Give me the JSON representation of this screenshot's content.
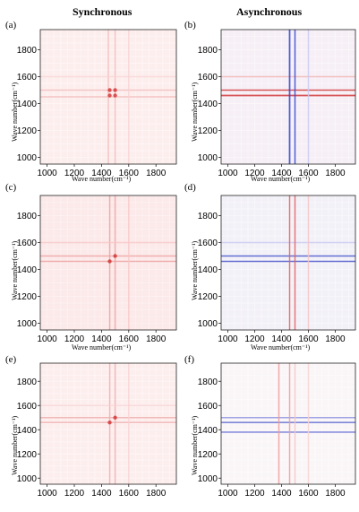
{
  "columns": {
    "left": "Synchronous",
    "right": "Asynchronous"
  },
  "chart_data": [
    {
      "id": "a",
      "type": "heatmap",
      "label": "(a)",
      "xlabel": "Wave number(cm⁻¹)",
      "ylabel": "Wave number(cm⁻¹)",
      "xlim": [
        950,
        1950
      ],
      "ylim": [
        950,
        1950
      ],
      "xticks": [
        1000,
        1200,
        1400,
        1600,
        1800
      ],
      "yticks": [
        1000,
        1200,
        1400,
        1600,
        1800
      ],
      "bands": [
        {
          "pos": 1450,
          "w": 10,
          "color": "#f2b5b5"
        },
        {
          "pos": 1500,
          "w": 10,
          "color": "#f2b5b5"
        },
        {
          "pos": 1600,
          "w": 6,
          "color": "#f7d2d2"
        }
      ],
      "peaks": [
        {
          "x": 1460,
          "y": 1460
        },
        {
          "x": 1500,
          "y": 1500
        },
        {
          "x": 1460,
          "y": 1500
        },
        {
          "x": 1500,
          "y": 1460
        }
      ],
      "background": "#fdeeee"
    },
    {
      "id": "b",
      "type": "heatmap",
      "label": "(b)",
      "xlabel": "Wave number(cm⁻¹)",
      "ylabel": "Wave number(cm⁻¹)",
      "xlim": [
        950,
        1950
      ],
      "ylim": [
        950,
        1950
      ],
      "xticks": [
        1000,
        1200,
        1400,
        1600,
        1800
      ],
      "yticks": [
        1000,
        1200,
        1400,
        1600,
        1800
      ],
      "bands_vertical": [
        {
          "pos": 1460,
          "w": 12,
          "color": "#3344cc"
        },
        {
          "pos": 1500,
          "w": 10,
          "color": "#3344cc"
        },
        {
          "pos": 1600,
          "w": 10,
          "color": "#c9c9f2"
        }
      ],
      "bands_horizontal": [
        {
          "pos": 1460,
          "w": 12,
          "color": "#d23b3b"
        },
        {
          "pos": 1500,
          "w": 10,
          "color": "#d23b3b"
        },
        {
          "pos": 1600,
          "w": 10,
          "color": "#f2b5b5"
        }
      ],
      "background": "#f6f0f6"
    },
    {
      "id": "c",
      "type": "heatmap",
      "label": "(c)",
      "xlabel": "Wave number(cm⁻¹)",
      "ylabel": "Wave number(cm⁻¹)",
      "xlim": [
        950,
        1950
      ],
      "ylim": [
        950,
        1950
      ],
      "xticks": [
        1000,
        1200,
        1400,
        1600,
        1800
      ],
      "yticks": [
        1000,
        1200,
        1400,
        1600,
        1800
      ],
      "bands": [
        {
          "pos": 1460,
          "w": 10,
          "color": "#eb9a9a"
        },
        {
          "pos": 1500,
          "w": 10,
          "color": "#eb9a9a"
        },
        {
          "pos": 1600,
          "w": 10,
          "color": "#f5c4c4"
        }
      ],
      "peaks": [
        {
          "x": 1460,
          "y": 1460
        },
        {
          "x": 1500,
          "y": 1500
        }
      ],
      "background": "#fce9e9"
    },
    {
      "id": "d",
      "type": "heatmap",
      "label": "(d)",
      "xlabel": "Wave number(cm⁻¹)",
      "ylabel": "Wave number(cm⁻¹)",
      "xlim": [
        950,
        1950
      ],
      "ylim": [
        950,
        1950
      ],
      "xticks": [
        1000,
        1200,
        1400,
        1600,
        1800
      ],
      "yticks": [
        1000,
        1200,
        1400,
        1600,
        1800
      ],
      "bands_vertical": [
        {
          "pos": 1460,
          "w": 10,
          "color": "#e06060"
        },
        {
          "pos": 1500,
          "w": 10,
          "color": "#e06060"
        },
        {
          "pos": 1600,
          "w": 10,
          "color": "#f5c4c4"
        }
      ],
      "bands_horizontal": [
        {
          "pos": 1460,
          "w": 10,
          "color": "#4a55cc"
        },
        {
          "pos": 1500,
          "w": 10,
          "color": "#4a55cc"
        },
        {
          "pos": 1600,
          "w": 10,
          "color": "#c9c9f2"
        }
      ],
      "background": "#f3f1f8"
    },
    {
      "id": "e",
      "type": "heatmap",
      "label": "(e)",
      "xlabel": "Wave number(cm⁻¹)",
      "ylabel": "Wave number(cm⁻¹)",
      "xlim": [
        950,
        1950
      ],
      "ylim": [
        950,
        1950
      ],
      "xticks": [
        1000,
        1200,
        1400,
        1600,
        1800
      ],
      "yticks": [
        1000,
        1200,
        1400,
        1600,
        1800
      ],
      "bands": [
        {
          "pos": 1460,
          "w": 10,
          "color": "#eea6a6"
        },
        {
          "pos": 1500,
          "w": 10,
          "color": "#eea6a6"
        },
        {
          "pos": 1600,
          "w": 8,
          "color": "#f7d2d2"
        }
      ],
      "peaks": [
        {
          "x": 1460,
          "y": 1460
        },
        {
          "x": 1500,
          "y": 1500
        }
      ],
      "background": "#fdeeee"
    },
    {
      "id": "f",
      "type": "heatmap",
      "label": "(f)",
      "xlabel": "Wave number(cm⁻¹)",
      "ylabel": "Wave number(cm⁻¹)",
      "xlim": [
        950,
        1950
      ],
      "ylim": [
        950,
        1950
      ],
      "xticks": [
        1000,
        1200,
        1400,
        1600,
        1800
      ],
      "yticks": [
        1000,
        1200,
        1400,
        1600,
        1800
      ],
      "bands_vertical": [
        {
          "pos": 1380,
          "w": 10,
          "color": "#ee9a9a"
        },
        {
          "pos": 1460,
          "w": 10,
          "color": "#ee9a9a"
        },
        {
          "pos": 1500,
          "w": 8,
          "color": "#f5c4c4"
        },
        {
          "pos": 1600,
          "w": 8,
          "color": "#f7d2d2"
        }
      ],
      "bands_horizontal": [
        {
          "pos": 1380,
          "w": 10,
          "color": "#6a74d6"
        },
        {
          "pos": 1460,
          "w": 8,
          "color": "#5a64d0"
        },
        {
          "pos": 1500,
          "w": 8,
          "color": "#8d95e0"
        }
      ],
      "background": "#faf6f8"
    }
  ]
}
